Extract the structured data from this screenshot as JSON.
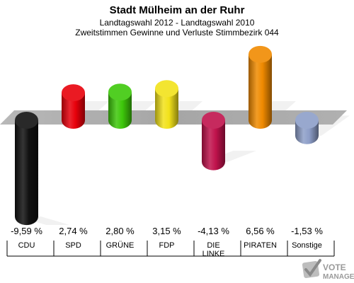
{
  "chart_data": {
    "type": "bar",
    "title": "Stadt Mülheim an der Ruhr",
    "subtitle": "Landtagswahl 2012 - Landtagswahl 2010",
    "subtitle2": "Zweitstimmen Gewinne und Verluste Stimmbezirk 044",
    "categories": [
      "CDU",
      "SPD",
      "GRÜNE",
      "FDP",
      "DIE LINKE",
      "PIRATEN",
      "Sonstige"
    ],
    "values": [
      -9.59,
      2.74,
      2.8,
      3.15,
      -4.13,
      6.56,
      -1.53
    ],
    "value_labels": [
      "-9,59 %",
      "2,74 %",
      "2,80 %",
      "3,15 %",
      "-4,13 %",
      "6,56 %",
      "-1,53 %"
    ],
    "colors": [
      "#111111",
      "#e8000b",
      "#3ec80a",
      "#f2e21a",
      "#c0124c",
      "#f08a00",
      "#8d9ec8"
    ],
    "ylim": [
      -9.59,
      6.56
    ],
    "grid": false,
    "legend": "none"
  },
  "watermark": {
    "line1": "VOTE",
    "line2": "MANAGER"
  }
}
